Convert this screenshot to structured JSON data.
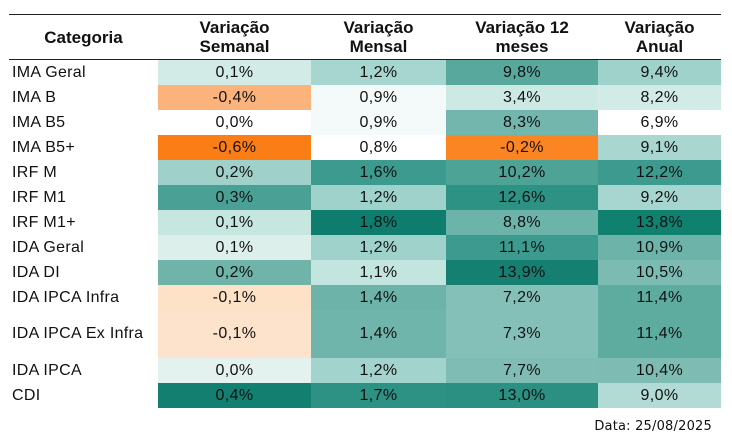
{
  "headers": [
    "Categoria",
    "Variação Semanal",
    "Variação Mensal",
    "Variação 12 meses",
    "Variação Anual"
  ],
  "rows": [
    {
      "label": "IMA Geral",
      "cells": [
        {
          "v": "0,1%",
          "bg": "#d2ebe6"
        },
        {
          "v": "1,2%",
          "bg": "#a6d6cf"
        },
        {
          "v": "9,8%",
          "bg": "#58a89e"
        },
        {
          "v": "9,4%",
          "bg": "#9fd2cb"
        }
      ]
    },
    {
      "label": "IMA B",
      "cells": [
        {
          "v": "-0,4%",
          "bg": "#fcb37b"
        },
        {
          "v": "0,9%",
          "bg": "#f4faf9"
        },
        {
          "v": "3,4%",
          "bg": "#cde9e4"
        },
        {
          "v": "8,2%",
          "bg": "#d3ebe7"
        }
      ]
    },
    {
      "label": "IMA B5",
      "cells": [
        {
          "v": "0,0%",
          "bg": "#ffffff"
        },
        {
          "v": "0,9%",
          "bg": "#f4faf9"
        },
        {
          "v": "8,3%",
          "bg": "#72b6ad"
        },
        {
          "v": "6,9%",
          "bg": "#ffffff"
        }
      ]
    },
    {
      "label": "IMA B5+",
      "cells": [
        {
          "v": "-0,6%",
          "bg": "#fb7d15"
        },
        {
          "v": "0,8%",
          "bg": "#ffffff"
        },
        {
          "v": "-0,2%",
          "bg": "#fb8522"
        },
        {
          "v": "9,1%",
          "bg": "#a9d7d0"
        }
      ]
    },
    {
      "label": "IRF M",
      "cells": [
        {
          "v": "0,2%",
          "bg": "#9fd0c9"
        },
        {
          "v": "1,6%",
          "bg": "#3c9a8e"
        },
        {
          "v": "10,2%",
          "bg": "#4ea397"
        },
        {
          "v": "12,2%",
          "bg": "#3d9a8e"
        }
      ]
    },
    {
      "label": "IRF M1",
      "cells": [
        {
          "v": "0,3%",
          "bg": "#4aa094"
        },
        {
          "v": "1,2%",
          "bg": "#9fd2cb"
        },
        {
          "v": "12,6%",
          "bg": "#2d9283"
        },
        {
          "v": "9,2%",
          "bg": "#a6d6cf"
        }
      ]
    },
    {
      "label": "IRF M1+",
      "cells": [
        {
          "v": "0,1%",
          "bg": "#c6e6e0"
        },
        {
          "v": "1,8%",
          "bg": "#0e7d6d"
        },
        {
          "v": "8,8%",
          "bg": "#6cb3a9"
        },
        {
          "v": "13,8%",
          "bg": "#10806f"
        }
      ]
    },
    {
      "label": "IDA Geral",
      "cells": [
        {
          "v": "0,1%",
          "bg": "#dcefeb"
        },
        {
          "v": "1,2%",
          "bg": "#9fd2cb"
        },
        {
          "v": "11,1%",
          "bg": "#3d9a8e"
        },
        {
          "v": "10,9%",
          "bg": "#6db3a9"
        }
      ]
    },
    {
      "label": "IDA DI",
      "cells": [
        {
          "v": "0,2%",
          "bg": "#6fb3a9"
        },
        {
          "v": "1,1%",
          "bg": "#c3e5df"
        },
        {
          "v": "13,9%",
          "bg": "#157f71"
        },
        {
          "v": "10,5%",
          "bg": "#7bbbb2"
        }
      ]
    },
    {
      "label": "IDA IPCA Infra",
      "cells": [
        {
          "v": "-0,1%",
          "bg": "#fde2c8"
        },
        {
          "v": "1,4%",
          "bg": "#6db3a9"
        },
        {
          "v": "7,2%",
          "bg": "#84c0b7"
        },
        {
          "v": "11,4%",
          "bg": "#5eaba0"
        }
      ]
    },
    {
      "label": "IDA IPCA Ex Infra",
      "tall": true,
      "cells": [
        {
          "v": "-0,1%",
          "bg": "#fde3cb"
        },
        {
          "v": "1,4%",
          "bg": "#70b5ab"
        },
        {
          "v": "7,3%",
          "bg": "#84c0b7"
        },
        {
          "v": "11,4%",
          "bg": "#5eaba0"
        }
      ]
    },
    {
      "label": "IDA IPCA",
      "cells": [
        {
          "v": "0,0%",
          "bg": "#e3f2ef"
        },
        {
          "v": "1,2%",
          "bg": "#a2d4cd"
        },
        {
          "v": "7,7%",
          "bg": "#7fbdb4"
        },
        {
          "v": "10,4%",
          "bg": "#7ebcb3"
        }
      ]
    },
    {
      "label": "CDI",
      "cells": [
        {
          "v": "0,4%",
          "bg": "#137f70"
        },
        {
          "v": "1,7%",
          "bg": "#2d9283"
        },
        {
          "v": "13,0%",
          "bg": "#2b9081"
        },
        {
          "v": "9,0%",
          "bg": "#b3dbd5"
        }
      ]
    }
  ],
  "footer": {
    "date": "Data: 25/08/2025"
  }
}
